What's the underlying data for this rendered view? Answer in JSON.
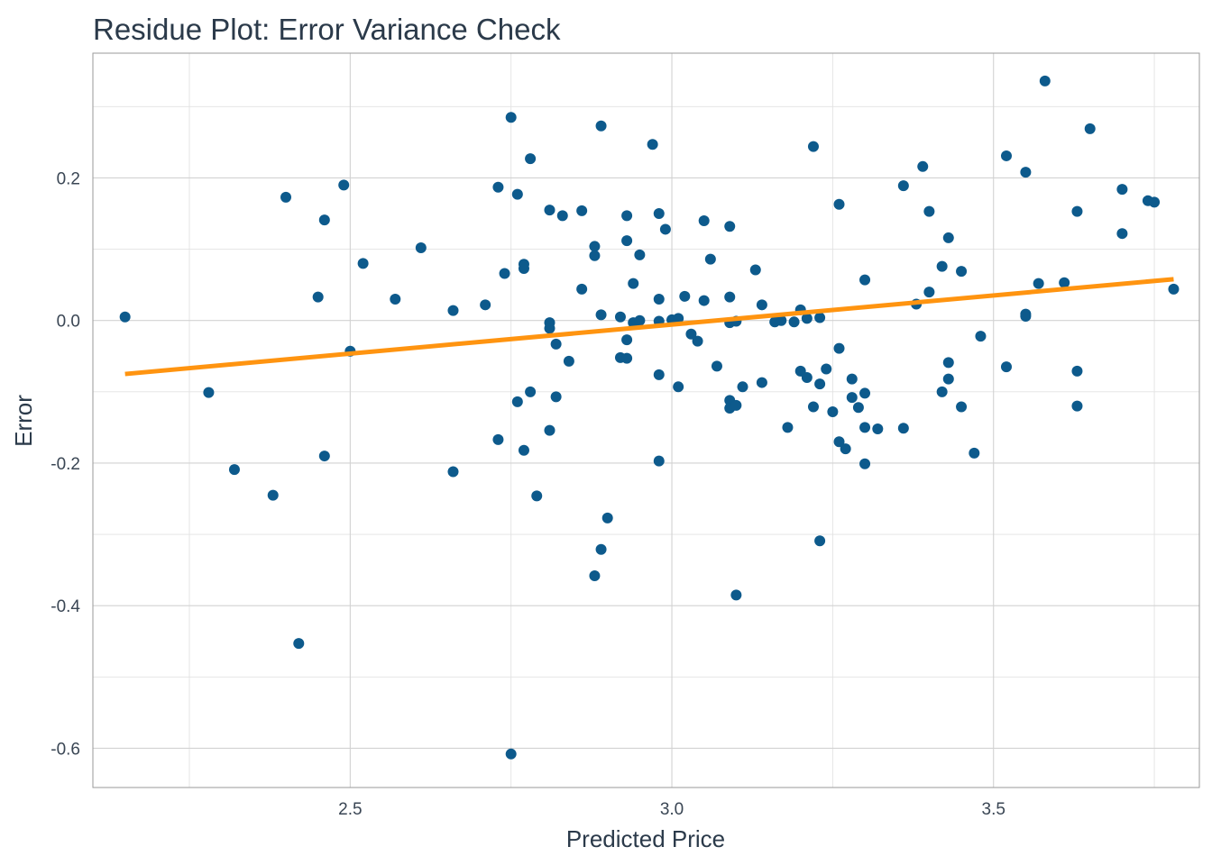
{
  "chart_data": {
    "type": "scatter",
    "title": "Residue Plot: Error Variance Check",
    "xlabel": "Predicted Price",
    "ylabel": "Error",
    "xlim": [
      2.1,
      3.82
    ],
    "ylim": [
      -0.655,
      0.375
    ],
    "x_ticks": [
      2.5,
      3.0,
      3.5
    ],
    "x_tick_labels": [
      "2.5",
      "3.0",
      "3.5"
    ],
    "x_minor_ticks": [
      2.25,
      2.75,
      3.25,
      3.75
    ],
    "y_ticks": [
      -0.6,
      -0.4,
      -0.2,
      0.0,
      0.2
    ],
    "y_tick_labels": [
      "-0.6",
      "-0.4",
      "-0.2",
      "0.0",
      "0.2"
    ],
    "y_minor_ticks": [
      -0.5,
      -0.3,
      -0.1,
      0.1,
      0.3
    ],
    "grid": true,
    "colors": {
      "points": "#0d5a8c",
      "trend": "#ff9410"
    },
    "trend_line": {
      "x": [
        2.15,
        3.78
      ],
      "y": [
        -0.075,
        0.058
      ]
    },
    "points": [
      {
        "x": 2.15,
        "y": 0.005
      },
      {
        "x": 2.28,
        "y": -0.101
      },
      {
        "x": 2.32,
        "y": -0.209
      },
      {
        "x": 2.38,
        "y": -0.245
      },
      {
        "x": 2.4,
        "y": 0.173
      },
      {
        "x": 2.42,
        "y": -0.453
      },
      {
        "x": 2.45,
        "y": 0.033
      },
      {
        "x": 2.46,
        "y": 0.141
      },
      {
        "x": 2.46,
        "y": -0.19
      },
      {
        "x": 2.49,
        "y": 0.19
      },
      {
        "x": 2.5,
        "y": -0.043
      },
      {
        "x": 2.52,
        "y": 0.08
      },
      {
        "x": 2.57,
        "y": 0.03
      },
      {
        "x": 2.61,
        "y": 0.102
      },
      {
        "x": 2.66,
        "y": -0.212
      },
      {
        "x": 2.66,
        "y": 0.014
      },
      {
        "x": 2.71,
        "y": 0.022
      },
      {
        "x": 2.73,
        "y": 0.187
      },
      {
        "x": 2.73,
        "y": -0.167
      },
      {
        "x": 2.74,
        "y": 0.066
      },
      {
        "x": 2.75,
        "y": 0.285
      },
      {
        "x": 2.75,
        "y": -0.608
      },
      {
        "x": 2.76,
        "y": 0.177
      },
      {
        "x": 2.76,
        "y": -0.114
      },
      {
        "x": 2.77,
        "y": 0.073
      },
      {
        "x": 2.77,
        "y": 0.079
      },
      {
        "x": 2.77,
        "y": -0.182
      },
      {
        "x": 2.78,
        "y": 0.227
      },
      {
        "x": 2.78,
        "y": -0.1
      },
      {
        "x": 2.79,
        "y": -0.246
      },
      {
        "x": 2.81,
        "y": 0.155
      },
      {
        "x": 2.81,
        "y": -0.003
      },
      {
        "x": 2.81,
        "y": -0.011
      },
      {
        "x": 2.81,
        "y": -0.154
      },
      {
        "x": 2.82,
        "y": -0.033
      },
      {
        "x": 2.82,
        "y": -0.107
      },
      {
        "x": 2.83,
        "y": 0.147
      },
      {
        "x": 2.84,
        "y": -0.057
      },
      {
        "x": 2.86,
        "y": 0.154
      },
      {
        "x": 2.86,
        "y": 0.044
      },
      {
        "x": 2.88,
        "y": 0.104
      },
      {
        "x": 2.88,
        "y": 0.091
      },
      {
        "x": 2.88,
        "y": -0.358
      },
      {
        "x": 2.89,
        "y": 0.273
      },
      {
        "x": 2.89,
        "y": 0.008
      },
      {
        "x": 2.89,
        "y": -0.321
      },
      {
        "x": 2.9,
        "y": -0.277
      },
      {
        "x": 2.92,
        "y": 0.005
      },
      {
        "x": 2.92,
        "y": -0.052
      },
      {
        "x": 2.93,
        "y": 0.147
      },
      {
        "x": 2.93,
        "y": 0.112
      },
      {
        "x": 2.93,
        "y": -0.027
      },
      {
        "x": 2.93,
        "y": -0.053
      },
      {
        "x": 2.94,
        "y": 0.052
      },
      {
        "x": 2.94,
        "y": -0.003
      },
      {
        "x": 2.95,
        "y": 0.092
      },
      {
        "x": 2.95,
        "y": 0.0
      },
      {
        "x": 2.97,
        "y": 0.247
      },
      {
        "x": 2.98,
        "y": 0.15
      },
      {
        "x": 2.98,
        "y": 0.03
      },
      {
        "x": 2.98,
        "y": -0.001
      },
      {
        "x": 2.98,
        "y": -0.076
      },
      {
        "x": 2.98,
        "y": -0.197
      },
      {
        "x": 2.99,
        "y": 0.128
      },
      {
        "x": 3.0,
        "y": 0.001
      },
      {
        "x": 3.01,
        "y": 0.003
      },
      {
        "x": 3.01,
        "y": -0.093
      },
      {
        "x": 3.02,
        "y": 0.034
      },
      {
        "x": 3.03,
        "y": -0.019
      },
      {
        "x": 3.04,
        "y": -0.029
      },
      {
        "x": 3.05,
        "y": 0.14
      },
      {
        "x": 3.05,
        "y": 0.028
      },
      {
        "x": 3.06,
        "y": 0.086
      },
      {
        "x": 3.07,
        "y": -0.064
      },
      {
        "x": 3.09,
        "y": 0.132
      },
      {
        "x": 3.09,
        "y": 0.033
      },
      {
        "x": 3.09,
        "y": -0.003
      },
      {
        "x": 3.09,
        "y": -0.112
      },
      {
        "x": 3.09,
        "y": -0.123
      },
      {
        "x": 3.1,
        "y": -0.385
      },
      {
        "x": 3.1,
        "y": -0.119
      },
      {
        "x": 3.1,
        "y": -0.001
      },
      {
        "x": 3.11,
        "y": -0.093
      },
      {
        "x": 3.13,
        "y": 0.071
      },
      {
        "x": 3.14,
        "y": -0.087
      },
      {
        "x": 3.14,
        "y": 0.022
      },
      {
        "x": 3.16,
        "y": -0.002
      },
      {
        "x": 3.17,
        "y": 0.0
      },
      {
        "x": 3.18,
        "y": -0.15
      },
      {
        "x": 3.19,
        "y": -0.002
      },
      {
        "x": 3.2,
        "y": -0.071
      },
      {
        "x": 3.2,
        "y": 0.015
      },
      {
        "x": 3.21,
        "y": 0.003
      },
      {
        "x": 3.21,
        "y": -0.08
      },
      {
        "x": 3.22,
        "y": -0.121
      },
      {
        "x": 3.22,
        "y": 0.244
      },
      {
        "x": 3.23,
        "y": 0.004
      },
      {
        "x": 3.23,
        "y": -0.089
      },
      {
        "x": 3.23,
        "y": -0.309
      },
      {
        "x": 3.24,
        "y": -0.068
      },
      {
        "x": 3.25,
        "y": -0.128
      },
      {
        "x": 3.26,
        "y": 0.163
      },
      {
        "x": 3.26,
        "y": -0.039
      },
      {
        "x": 3.26,
        "y": -0.17
      },
      {
        "x": 3.27,
        "y": -0.18
      },
      {
        "x": 3.28,
        "y": -0.082
      },
      {
        "x": 3.28,
        "y": -0.108
      },
      {
        "x": 3.29,
        "y": -0.122
      },
      {
        "x": 3.3,
        "y": 0.057
      },
      {
        "x": 3.3,
        "y": -0.102
      },
      {
        "x": 3.3,
        "y": -0.15
      },
      {
        "x": 3.3,
        "y": -0.201
      },
      {
        "x": 3.32,
        "y": -0.152
      },
      {
        "x": 3.36,
        "y": 0.189
      },
      {
        "x": 3.36,
        "y": -0.151
      },
      {
        "x": 3.39,
        "y": 0.216
      },
      {
        "x": 3.4,
        "y": 0.153
      },
      {
        "x": 3.4,
        "y": 0.04
      },
      {
        "x": 3.38,
        "y": 0.023
      },
      {
        "x": 3.42,
        "y": 0.076
      },
      {
        "x": 3.42,
        "y": -0.1
      },
      {
        "x": 3.43,
        "y": 0.116
      },
      {
        "x": 3.43,
        "y": -0.059
      },
      {
        "x": 3.43,
        "y": -0.082
      },
      {
        "x": 3.45,
        "y": 0.069
      },
      {
        "x": 3.45,
        "y": -0.121
      },
      {
        "x": 3.47,
        "y": -0.186
      },
      {
        "x": 3.48,
        "y": -0.022
      },
      {
        "x": 3.52,
        "y": 0.231
      },
      {
        "x": 3.52,
        "y": -0.065
      },
      {
        "x": 3.55,
        "y": 0.208
      },
      {
        "x": 3.55,
        "y": 0.006
      },
      {
        "x": 3.55,
        "y": 0.009
      },
      {
        "x": 3.57,
        "y": 0.052
      },
      {
        "x": 3.58,
        "y": 0.336
      },
      {
        "x": 3.61,
        "y": 0.053
      },
      {
        "x": 3.63,
        "y": 0.153
      },
      {
        "x": 3.63,
        "y": -0.071
      },
      {
        "x": 3.63,
        "y": -0.12
      },
      {
        "x": 3.65,
        "y": 0.269
      },
      {
        "x": 3.7,
        "y": 0.184
      },
      {
        "x": 3.7,
        "y": 0.122
      },
      {
        "x": 3.74,
        "y": 0.168
      },
      {
        "x": 3.75,
        "y": 0.166
      },
      {
        "x": 3.78,
        "y": 0.044
      }
    ]
  }
}
